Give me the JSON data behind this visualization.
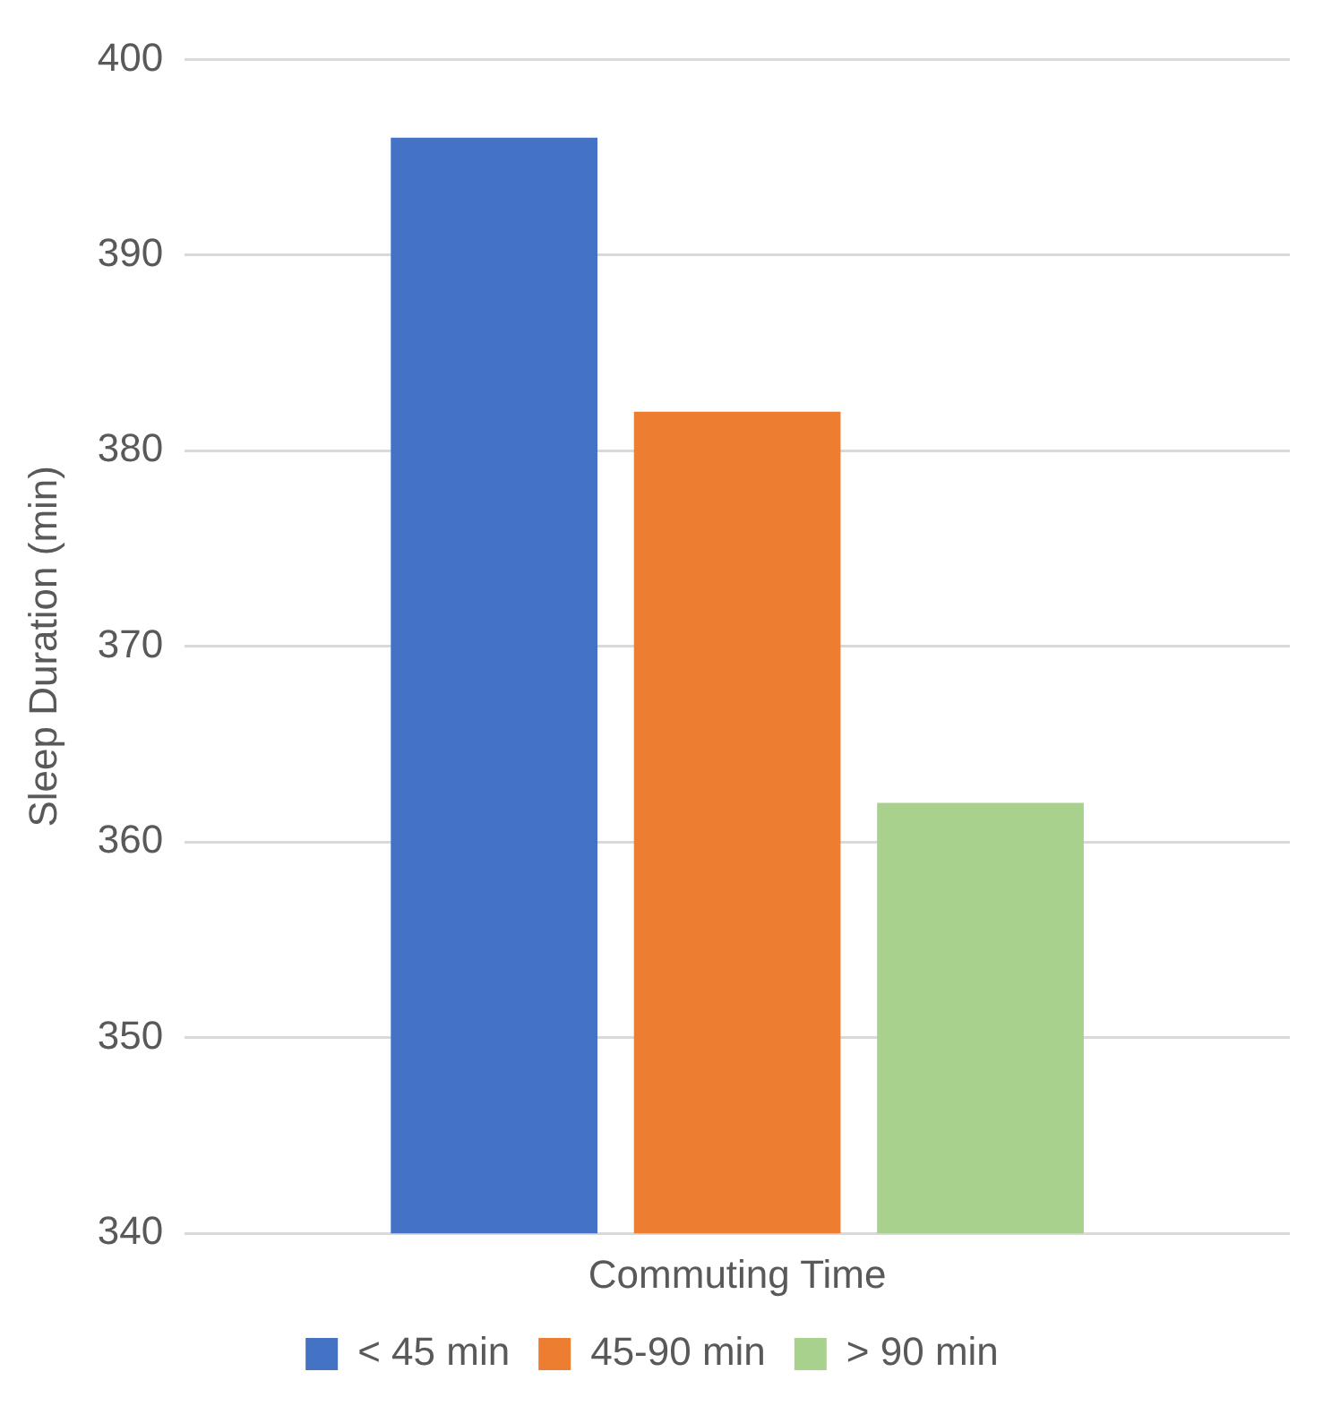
{
  "chart_data": {
    "type": "bar",
    "ylabel": "Sleep Duration (min)",
    "categories": [
      "Commuting Time"
    ],
    "series": [
      {
        "name": "< 45 min",
        "color": "#4472c4",
        "values": [
          396
        ]
      },
      {
        "name": "45-90 min",
        "color": "#ed7d31",
        "values": [
          382
        ]
      },
      {
        "name": "> 90 min",
        "color": "#a9d18e",
        "values": [
          362
        ]
      }
    ],
    "ylim": [
      340,
      400
    ],
    "yticks": [
      340,
      350,
      360,
      370,
      380,
      390,
      400
    ],
    "grid": "y",
    "legend": "bottom"
  }
}
